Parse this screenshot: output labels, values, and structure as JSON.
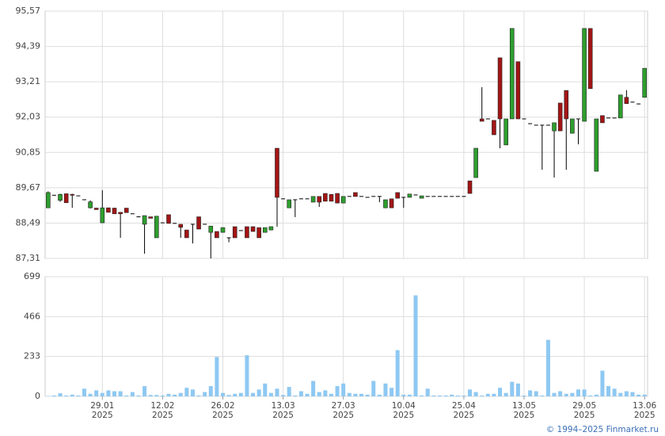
{
  "chart_data": [
    {
      "type": "candlestick",
      "up_color": "#2e9e2e",
      "down_color": "#a31515",
      "grid": true,
      "ylim": [
        87.31,
        95.57
      ],
      "yticks": [
        {
          "value": 87.31,
          "label": "87,31"
        },
        {
          "value": 88.49,
          "label": "88,49"
        },
        {
          "value": 89.67,
          "label": "89,67"
        },
        {
          "value": 90.85,
          "label": "90,85"
        },
        {
          "value": 92.03,
          "label": "92,03"
        },
        {
          "value": 93.21,
          "label": "93,21"
        },
        {
          "value": 94.39,
          "label": "94,39"
        },
        {
          "value": 95.57,
          "label": "95,57"
        }
      ],
      "categories": [
        null,
        null,
        null,
        null,
        null,
        null,
        null,
        null,
        null,
        "29.01\n2025",
        null,
        null,
        null,
        null,
        null,
        null,
        null,
        null,
        null,
        "12.02\n2025",
        null,
        null,
        null,
        null,
        null,
        null,
        null,
        null,
        null,
        "26.02\n2025",
        null,
        null,
        null,
        null,
        null,
        null,
        null,
        null,
        null,
        "13.03\n2025",
        null,
        null,
        null,
        null,
        null,
        null,
        null,
        null,
        null,
        "27.03\n2025",
        null,
        null,
        null,
        null,
        null,
        null,
        null,
        null,
        null,
        "10.04\n2025",
        null,
        null,
        null,
        null,
        null,
        null,
        null,
        null,
        null,
        "25.04\n2025",
        null,
        null,
        null,
        null,
        null,
        null,
        null,
        null,
        null,
        "13.05\n2025",
        null,
        null,
        null,
        null,
        null,
        null,
        null,
        null,
        null,
        "29.05\n2025",
        null,
        null,
        null,
        null,
        null,
        null,
        null,
        null,
        null,
        "13.06\n2025"
      ],
      "open": [
        89.0,
        89.42,
        89.25,
        89.47,
        89.45,
        89.4,
        89.27,
        89.0,
        88.99,
        88.5,
        89.0,
        88.99,
        88.85,
        88.99,
        88.8,
        88.7,
        88.45,
        88.7,
        88.0,
        88.5,
        88.77,
        88.48,
        88.45,
        88.26,
        88.45,
        88.7,
        88.45,
        88.18,
        88.21,
        88.18,
        88.0,
        88.37,
        88.24,
        88.37,
        88.37,
        88.34,
        88.18,
        88.26,
        90.99,
        89.3,
        89.0,
        89.27,
        89.3,
        89.3,
        89.19,
        89.38,
        89.48,
        89.45,
        89.48,
        89.16,
        89.38,
        89.51,
        89.38,
        89.35,
        89.38,
        89.38,
        89.0,
        89.3,
        89.51,
        89.35,
        89.35,
        89.43,
        89.32,
        89.38,
        89.38,
        89.38,
        89.38,
        89.38,
        89.38,
        89.38,
        89.9,
        90.01,
        91.97,
        91.97,
        91.92,
        94.01,
        91.1,
        91.97,
        93.88,
        91.97,
        91.81,
        91.76,
        91.76,
        91.76,
        91.57,
        92.5,
        92.92,
        91.49,
        91.97,
        91.89,
        94.99,
        90.22,
        92.08,
        92.0,
        92.0,
        92.0,
        92.69,
        92.53,
        92.47,
        92.69
      ],
      "high": [
        89.55,
        89.42,
        89.47,
        89.47,
        89.47,
        89.4,
        89.27,
        89.25,
        89.0,
        89.59,
        89.0,
        89.0,
        88.85,
        88.99,
        88.8,
        88.7,
        88.74,
        88.7,
        88.72,
        88.5,
        88.77,
        88.48,
        88.45,
        88.26,
        88.45,
        88.7,
        88.45,
        88.39,
        88.21,
        88.34,
        88.0,
        88.37,
        88.24,
        88.37,
        88.37,
        88.34,
        88.34,
        88.37,
        90.99,
        89.3,
        89.27,
        89.27,
        89.3,
        89.3,
        89.38,
        89.38,
        89.48,
        89.45,
        89.48,
        89.38,
        89.38,
        89.51,
        89.38,
        89.35,
        89.38,
        89.38,
        89.27,
        89.3,
        89.51,
        89.35,
        89.46,
        89.43,
        89.4,
        89.38,
        89.38,
        89.38,
        89.38,
        89.38,
        89.38,
        89.38,
        89.9,
        90.99,
        93.03,
        91.97,
        91.92,
        94.01,
        91.97,
        94.99,
        93.88,
        91.97,
        91.81,
        91.76,
        91.76,
        91.76,
        91.84,
        92.5,
        92.92,
        91.97,
        91.97,
        94.99,
        94.99,
        91.97,
        92.08,
        92.0,
        92.0,
        92.77,
        92.93,
        92.53,
        92.47,
        93.66
      ],
      "low": [
        89.0,
        89.42,
        89.2,
        89.17,
        89.0,
        89.4,
        89.27,
        88.98,
        88.94,
        88.5,
        88.85,
        88.8,
        88.0,
        88.84,
        88.8,
        88.7,
        87.47,
        88.65,
        88.0,
        88.5,
        88.48,
        88.48,
        88.0,
        88.0,
        87.81,
        88.29,
        88.45,
        87.31,
        88.0,
        88.18,
        87.85,
        88.0,
        88.24,
        88.0,
        88.21,
        88.0,
        88.18,
        88.26,
        88.37,
        89.3,
        89.0,
        88.69,
        89.3,
        89.3,
        89.19,
        89.03,
        89.22,
        89.22,
        89.16,
        89.16,
        89.38,
        89.38,
        89.38,
        89.35,
        89.38,
        89.19,
        89.0,
        89.0,
        89.32,
        89.0,
        89.35,
        89.43,
        89.32,
        89.38,
        89.38,
        89.38,
        89.38,
        89.38,
        89.38,
        89.38,
        89.48,
        90.01,
        91.89,
        91.97,
        91.44,
        90.99,
        91.1,
        91.97,
        91.97,
        91.97,
        91.81,
        91.76,
        90.27,
        91.76,
        90.01,
        91.57,
        90.27,
        91.49,
        91.12,
        91.89,
        92.98,
        90.22,
        91.84,
        92.0,
        92.0,
        92.0,
        92.48,
        92.53,
        92.47,
        92.69
      ],
      "close": [
        89.51,
        89.42,
        89.45,
        89.17,
        89.42,
        89.4,
        89.27,
        89.2,
        88.94,
        89.0,
        88.85,
        88.8,
        88.8,
        88.84,
        88.8,
        88.7,
        88.74,
        88.65,
        88.72,
        88.5,
        88.48,
        88.48,
        88.35,
        88.0,
        88.45,
        88.29,
        88.45,
        88.39,
        88.0,
        88.34,
        88.0,
        88.0,
        88.24,
        88.0,
        88.21,
        88.0,
        88.34,
        88.37,
        89.35,
        89.3,
        89.27,
        89.27,
        89.3,
        89.3,
        89.38,
        89.19,
        89.22,
        89.22,
        89.16,
        89.38,
        89.38,
        89.38,
        89.38,
        89.35,
        89.38,
        89.38,
        89.27,
        89.0,
        89.32,
        89.35,
        89.46,
        89.43,
        89.4,
        89.38,
        89.38,
        89.38,
        89.38,
        89.38,
        89.38,
        89.38,
        89.48,
        90.99,
        91.89,
        91.97,
        91.44,
        91.97,
        91.97,
        94.99,
        91.97,
        91.97,
        91.81,
        91.76,
        91.76,
        91.76,
        91.84,
        91.57,
        91.97,
        91.97,
        91.97,
        94.99,
        92.98,
        91.97,
        91.84,
        92.0,
        92.0,
        92.77,
        92.48,
        92.53,
        92.47,
        93.66
      ]
    },
    {
      "type": "bar",
      "color": "#8ec8f2",
      "grid": true,
      "ylim": [
        0,
        699
      ],
      "yticks": [
        0,
        233,
        466,
        699
      ],
      "values": [
        2,
        5,
        18,
        5,
        10,
        5,
        45,
        15,
        35,
        20,
        35,
        30,
        30,
        5,
        25,
        5,
        60,
        8,
        8,
        5,
        15,
        10,
        20,
        50,
        40,
        5,
        25,
        60,
        230,
        20,
        8,
        15,
        20,
        240,
        20,
        40,
        75,
        20,
        45,
        8,
        55,
        5,
        30,
        15,
        90,
        25,
        35,
        15,
        60,
        75,
        20,
        15,
        15,
        10,
        90,
        10,
        75,
        50,
        270,
        10,
        10,
        590,
        5,
        45,
        5,
        5,
        5,
        10,
        5,
        5,
        40,
        25,
        5,
        15,
        15,
        50,
        20,
        85,
        75,
        5,
        35,
        30,
        5,
        330,
        20,
        30,
        15,
        20,
        40,
        40,
        5,
        10,
        150,
        60,
        45,
        20,
        30,
        25,
        10,
        10
      ]
    }
  ],
  "footer": "© 1994–2025 Finmarket.ru"
}
